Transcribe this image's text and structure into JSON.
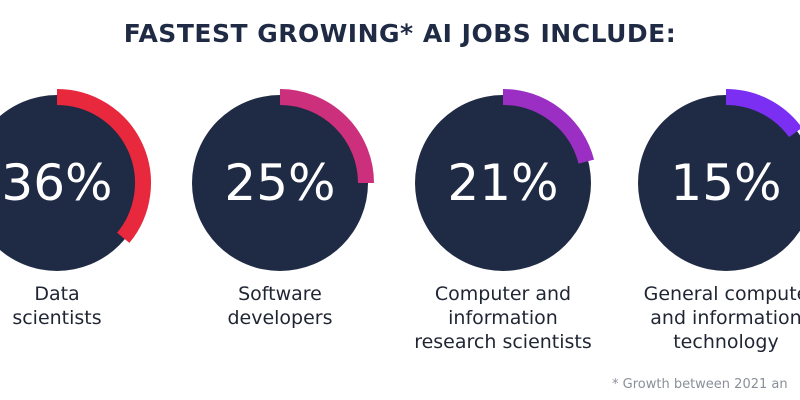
{
  "chart_data": {
    "type": "radial-progress",
    "title": "FASTEST GROWING* AI JOBS INCLUDE:",
    "categories": [
      [
        "Data",
        "scientists"
      ],
      [
        "Software",
        "developers"
      ],
      [
        "Computer and",
        "information",
        "research scientists"
      ],
      [
        "General compute",
        "and information",
        "technology"
      ]
    ],
    "values": [
      36,
      25,
      21,
      15
    ],
    "value_labels": [
      "36%",
      "25%",
      "21%",
      "15%"
    ],
    "colors": [
      "#e8283c",
      "#cc2f7c",
      "#9b2fc4",
      "#7a2ff2"
    ],
    "ylim": [
      0,
      100
    ],
    "footnote": "*  Growth between 2021 an"
  }
}
